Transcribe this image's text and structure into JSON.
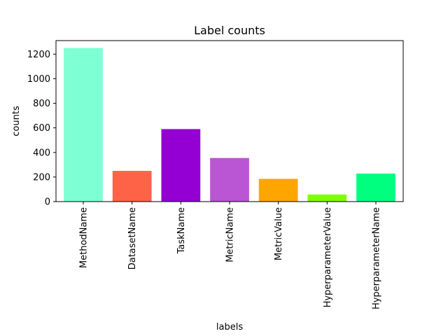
{
  "chart_data": {
    "type": "bar",
    "title": "Label counts",
    "xlabel": "labels",
    "ylabel": "counts",
    "categories": [
      "MethodName",
      "DatasetName",
      "TaskName",
      "MetricName",
      "MetricValue",
      "HyperparameterValue",
      "HyperparameterName"
    ],
    "values": [
      1250,
      250,
      590,
      355,
      185,
      58,
      228
    ],
    "colors": [
      "#7fffd4",
      "#ff6347",
      "#9400d3",
      "#ba55d3",
      "#ffa500",
      "#7fff00",
      "#00ff7f"
    ],
    "ylim": [
      0,
      1310
    ],
    "yticks": [
      0,
      200,
      400,
      600,
      800,
      1000,
      1200
    ],
    "grid": false,
    "legend": "none"
  }
}
